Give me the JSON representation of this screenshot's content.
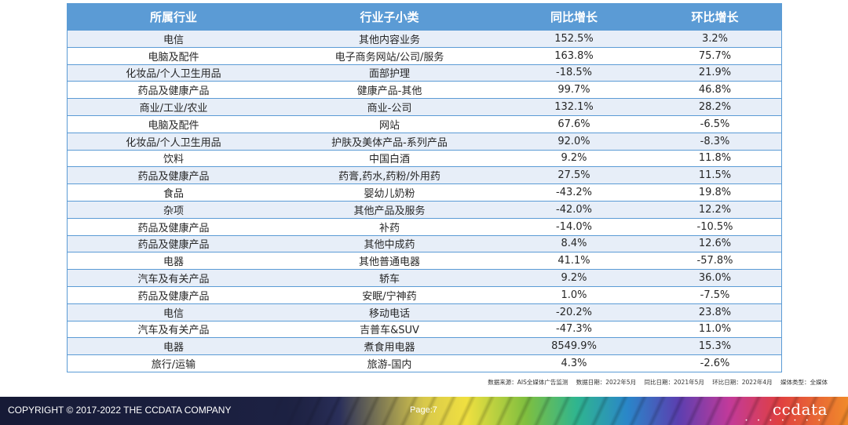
{
  "table": {
    "headers": [
      "所属行业",
      "行业子小类",
      "同比增长",
      "环比增长"
    ],
    "rows": [
      [
        "电信",
        "其他内容业务",
        "152.5%",
        "3.2%"
      ],
      [
        "电脑及配件",
        "电子商务网站/公司/服务",
        "163.8%",
        "75.7%"
      ],
      [
        "化妆品/个人卫生用品",
        "面部护理",
        "-18.5%",
        "21.9%"
      ],
      [
        "药品及健康产品",
        "健康产品-其他",
        "99.7%",
        "46.8%"
      ],
      [
        "商业/工业/农业",
        "商业-公司",
        "132.1%",
        "28.2%"
      ],
      [
        "电脑及配件",
        "网站",
        "67.6%",
        "-6.5%"
      ],
      [
        "化妆品/个人卫生用品",
        "护肤及美体产品-系列产品",
        "92.0%",
        "-8.3%"
      ],
      [
        "饮料",
        "中国白酒",
        "9.2%",
        "11.8%"
      ],
      [
        "药品及健康产品",
        "药膏,药水,药粉/外用药",
        "27.5%",
        "11.5%"
      ],
      [
        "食品",
        "婴幼儿奶粉",
        "-43.2%",
        "19.8%"
      ],
      [
        "杂项",
        "其他产品及服务",
        "-42.0%",
        "12.2%"
      ],
      [
        "药品及健康产品",
        "补药",
        "-14.0%",
        "-10.5%"
      ],
      [
        "药品及健康产品",
        "其他中成药",
        "8.4%",
        "12.6%"
      ],
      [
        "电器",
        "其他普通电器",
        "41.1%",
        "-57.8%"
      ],
      [
        "汽车及有关产品",
        "轿车",
        "9.2%",
        "36.0%"
      ],
      [
        "药品及健康产品",
        "安眠/宁神药",
        "1.0%",
        "-7.5%"
      ],
      [
        "电信",
        "移动电话",
        "-20.2%",
        "23.8%"
      ],
      [
        "汽车及有关产品",
        "吉普车&SUV",
        "-47.3%",
        "11.0%"
      ],
      [
        "电器",
        "煮食用电器",
        "8549.9%",
        "15.3%"
      ],
      [
        "旅行/运输",
        "旅游-国内",
        "4.3%",
        "-2.6%"
      ]
    ]
  },
  "source_note": {
    "source": "数据来源：AIS全媒体广告监测",
    "data_date": "数据日期：2022年5月",
    "yoy_date": "同比日期：2021年5月",
    "mom_date": "环比日期：2022年4月",
    "media_type": "媒体类型：全媒体"
  },
  "footer": {
    "copyright": "COPYRIGHT © 2017-2022 THE CCDATA COMPANY",
    "page": "Page:7",
    "logo": "ccdata",
    "logo_dots": "• • • • • • •"
  }
}
